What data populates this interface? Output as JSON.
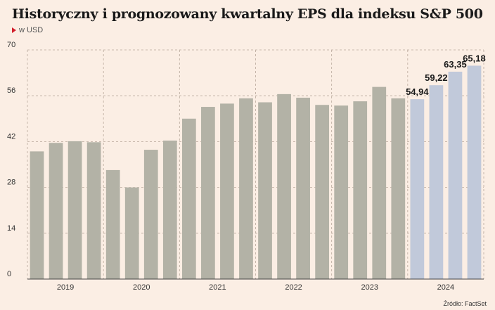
{
  "header": {
    "title": "Historyczny i prognozowany kwartalny EPS dla indeksu S&P 500",
    "subtitle": "w USD",
    "source": "Źródło: FactSet"
  },
  "colors": {
    "historical": "#b3b2a6",
    "forecast": "#c1c9da",
    "background": "#fbeee4",
    "grid": "#b9a99c",
    "accent": "#d21e2b"
  },
  "chart_data": {
    "type": "bar",
    "title": "Historyczny i prognozowany kwartalny EPS dla indeksu S&P 500",
    "subtitle": "w USD",
    "ylim": [
      0,
      70
    ],
    "yticks": [
      0,
      14,
      28,
      42,
      56,
      70
    ],
    "grid": true,
    "year_labels": [
      "2019",
      "2020",
      "2021",
      "2022",
      "2023",
      "2024"
    ],
    "categories": [
      "2019 Q1",
      "2019 Q2",
      "2019 Q3",
      "2019 Q4",
      "2020 Q1",
      "2020 Q2",
      "2020 Q3",
      "2020 Q4",
      "2021 Q1",
      "2021 Q2",
      "2021 Q3",
      "2021 Q4",
      "2022 Q1",
      "2022 Q2",
      "2022 Q3",
      "2022 Q4",
      "2023 Q1",
      "2023 Q2",
      "2023 Q3",
      "2023 Q4",
      "2024 Q1",
      "2024 Q2",
      "2024 Q3",
      "2024 Q4"
    ],
    "values": [
      39.0,
      41.6,
      42.1,
      41.8,
      33.3,
      28.0,
      39.5,
      42.3,
      49.0,
      52.6,
      53.6,
      55.2,
      54.0,
      56.5,
      55.4,
      53.2,
      53.0,
      54.3,
      58.7,
      55.2,
      54.94,
      59.22,
      63.35,
      65.18
    ],
    "forecast": [
      false,
      false,
      false,
      false,
      false,
      false,
      false,
      false,
      false,
      false,
      false,
      false,
      false,
      false,
      false,
      false,
      false,
      false,
      false,
      false,
      true,
      true,
      true,
      true
    ],
    "data_labels": [
      "",
      "",
      "",
      "",
      "",
      "",
      "",
      "",
      "",
      "",
      "",
      "",
      "",
      "",
      "",
      "",
      "",
      "",
      "",
      "",
      "54,94",
      "59,22",
      "63,35",
      "65,18"
    ]
  }
}
